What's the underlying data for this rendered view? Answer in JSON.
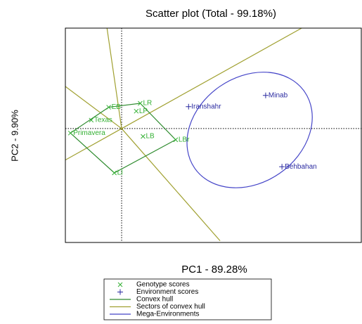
{
  "chart_data": {
    "type": "scatter",
    "title": "Scatter plot (Total - 99.18%)",
    "x_label": "PC1 - 89.28%",
    "y_label": "PC2 - 9.90%",
    "xlim": [
      -1,
      4.26
    ],
    "ylim": [
      -2.03,
      1.79
    ],
    "series": [
      {
        "name": "Genotype scores",
        "color": "#33b033",
        "marker": "x",
        "labels": [
          "LR",
          "EB",
          "LP",
          "Texas",
          "Primavera",
          "LB",
          "LBr",
          "LI"
        ],
        "x": [
          0.33,
          -0.23,
          0.26,
          -0.54,
          -0.91,
          0.38,
          0.96,
          -0.13
        ],
        "values": [
          0.45,
          0.38,
          0.31,
          0.15,
          -0.08,
          -0.14,
          -0.2,
          -0.79
        ]
      },
      {
        "name": "Environment scores",
        "color": "#2a2aa0",
        "marker": "+",
        "labels": [
          "Iranshahr",
          "Minab",
          "Behbahan"
        ],
        "x": [
          1.19,
          2.56,
          2.85
        ],
        "values": [
          0.39,
          0.59,
          -0.68
        ]
      }
    ],
    "convex_hull": {
      "name": "Convex hull",
      "color": "#2e8b2e",
      "x": [
        -0.23,
        0.33,
        0.96,
        -0.13,
        -0.91,
        -0.23
      ],
      "values": [
        0.38,
        0.45,
        -0.2,
        -0.79,
        -0.08,
        0.38
      ]
    },
    "sectors": {
      "name": "Sectors of convex hull",
      "color": "#a0a030",
      "x": [
        -1,
        1.75,
        -1,
        3.2,
        -0.26
      ],
      "values": [
        0.75,
        -2.0,
        -0.56,
        1.79,
        1.79
      ]
    },
    "mega_environment": {
      "name": "Mega-Environments",
      "color": "#4545c8",
      "cx": 2.275,
      "cy": -0.025,
      "rx": 1.19,
      "ry": 0.94,
      "angle": -35
    }
  }
}
